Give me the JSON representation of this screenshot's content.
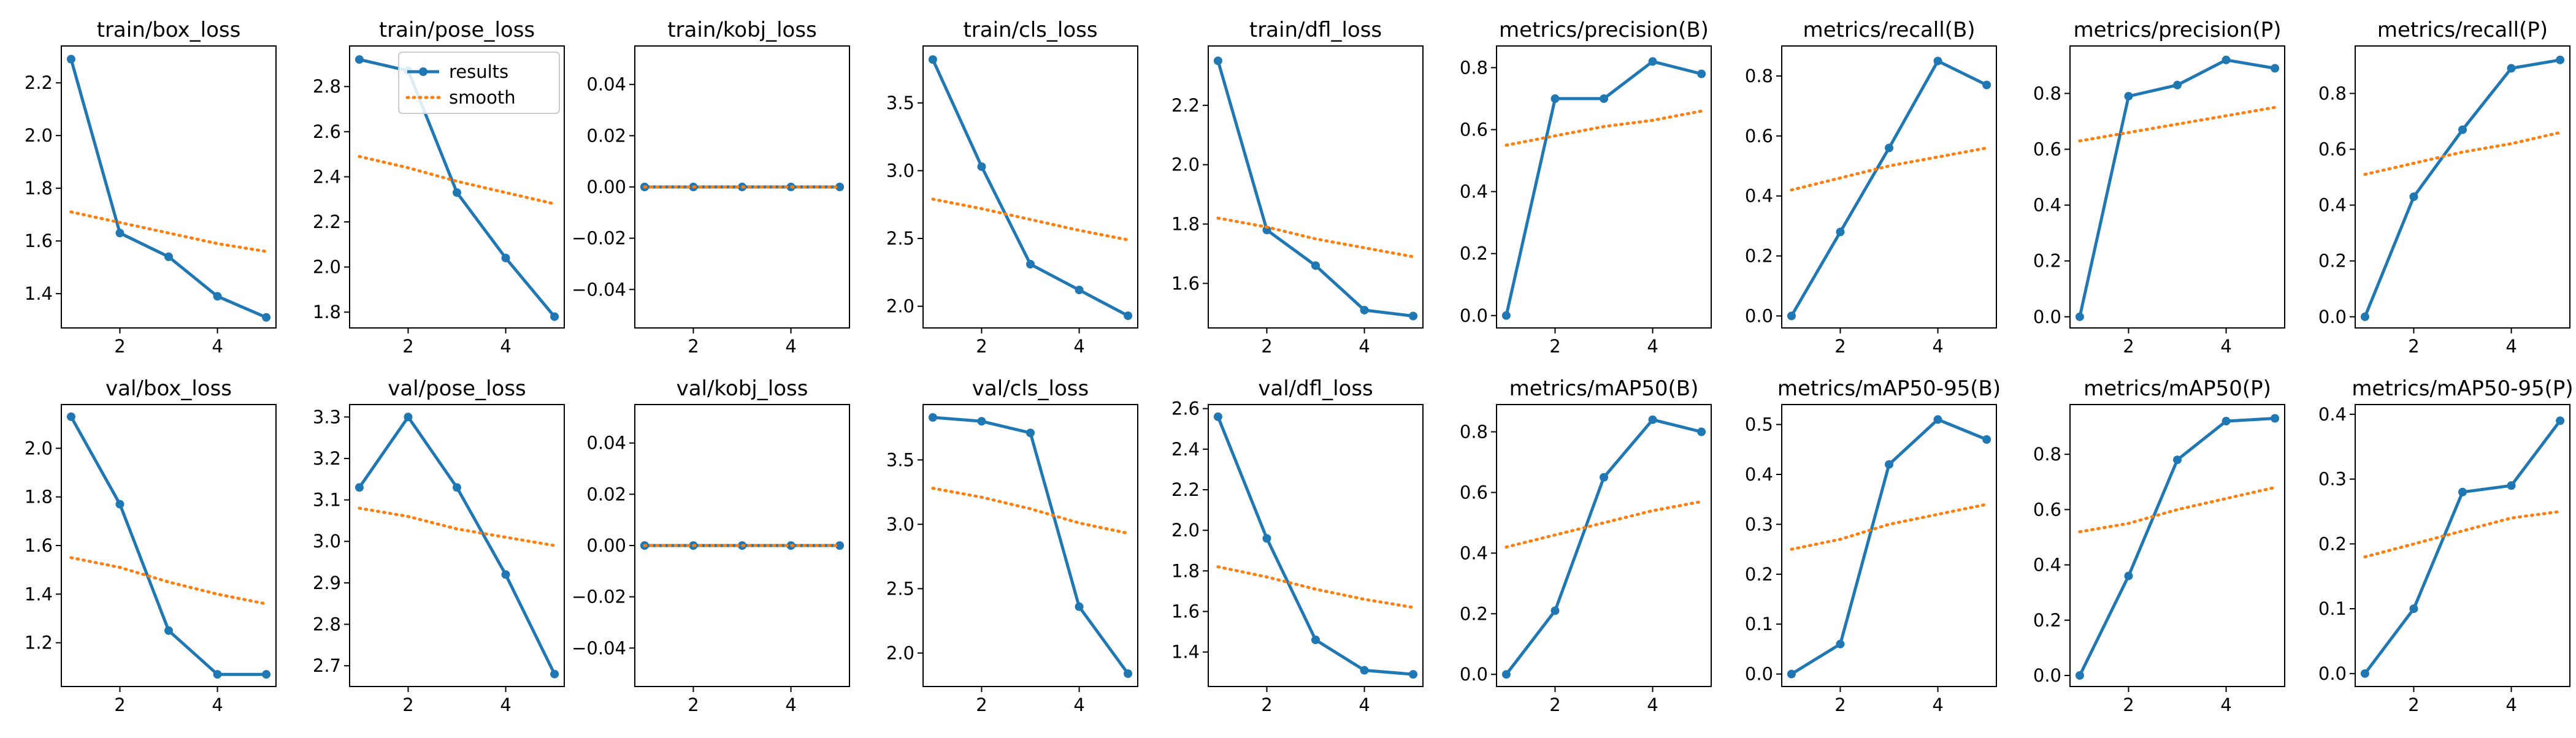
{
  "legend": {
    "results": "results",
    "smooth": "smooth"
  },
  "colors": {
    "results": "#1f77b4",
    "smooth": "#ff7f0e",
    "axes": "#000000",
    "background": "#ffffff"
  },
  "chart_data": [
    {
      "type": "line",
      "title": "train/box_loss",
      "xlabel": "",
      "ylabel": "",
      "x": [
        1,
        2,
        3,
        4,
        5
      ],
      "xlim": [
        0.8,
        5.2
      ],
      "ylim": [
        1.27,
        2.34
      ],
      "xticks": [
        2,
        4
      ],
      "yticks": [
        1.4,
        1.6,
        1.8,
        2.0,
        2.2
      ],
      "yticklabels": [
        "1.4",
        "1.6",
        "1.8",
        "2.0",
        "2.2"
      ],
      "grid": false,
      "series": [
        {
          "name": "results",
          "style": "solid-marker",
          "values": [
            2.29,
            1.63,
            1.54,
            1.39,
            1.31
          ]
        },
        {
          "name": "smooth",
          "style": "dotted",
          "values": [
            1.71,
            1.67,
            1.63,
            1.59,
            1.56
          ]
        }
      ]
    },
    {
      "type": "line",
      "title": "train/pose_loss",
      "xlabel": "",
      "ylabel": "",
      "x": [
        1,
        2,
        3,
        4,
        5
      ],
      "xlim": [
        0.8,
        5.2
      ],
      "ylim": [
        1.73,
        2.98
      ],
      "xticks": [
        2,
        4
      ],
      "yticks": [
        1.8,
        2.0,
        2.2,
        2.4,
        2.6,
        2.8
      ],
      "yticklabels": [
        "1.8",
        "2.0",
        "2.2",
        "2.4",
        "2.6",
        "2.8"
      ],
      "grid": false,
      "legend_position": "upper right",
      "series": [
        {
          "name": "results",
          "style": "solid-marker",
          "values": [
            2.92,
            2.87,
            2.33,
            2.04,
            1.78
          ]
        },
        {
          "name": "smooth",
          "style": "dotted",
          "values": [
            2.49,
            2.44,
            2.38,
            2.33,
            2.28
          ]
        }
      ]
    },
    {
      "type": "line",
      "title": "train/kobj_loss",
      "xlabel": "",
      "ylabel": "",
      "x": [
        1,
        2,
        3,
        4,
        5
      ],
      "xlim": [
        0.8,
        5.2
      ],
      "ylim": [
        -0.055,
        0.055
      ],
      "xticks": [
        2,
        4
      ],
      "yticks": [
        -0.04,
        -0.02,
        0.0,
        0.02,
        0.04
      ],
      "yticklabels": [
        "−0.04",
        "−0.02",
        "0.00",
        "0.02",
        "0.04"
      ],
      "grid": false,
      "series": [
        {
          "name": "results",
          "style": "solid-marker",
          "values": [
            0,
            0,
            0,
            0,
            0
          ]
        },
        {
          "name": "smooth",
          "style": "dotted",
          "values": [
            0,
            0,
            0,
            0,
            0
          ]
        }
      ]
    },
    {
      "type": "line",
      "title": "train/cls_loss",
      "xlabel": "",
      "ylabel": "",
      "x": [
        1,
        2,
        3,
        4,
        5
      ],
      "xlim": [
        0.8,
        5.2
      ],
      "ylim": [
        1.84,
        3.92
      ],
      "xticks": [
        2,
        4
      ],
      "yticks": [
        2.0,
        2.5,
        3.0,
        3.5
      ],
      "yticklabels": [
        "2.0",
        "2.5",
        "3.0",
        "3.5"
      ],
      "grid": false,
      "series": [
        {
          "name": "results",
          "style": "solid-marker",
          "values": [
            3.82,
            3.03,
            2.31,
            2.12,
            1.93
          ]
        },
        {
          "name": "smooth",
          "style": "dotted",
          "values": [
            2.79,
            2.72,
            2.64,
            2.56,
            2.49
          ]
        }
      ]
    },
    {
      "type": "line",
      "title": "train/dfl_loss",
      "xlabel": "",
      "ylabel": "",
      "x": [
        1,
        2,
        3,
        4,
        5
      ],
      "xlim": [
        0.8,
        5.2
      ],
      "ylim": [
        1.45,
        2.4
      ],
      "xticks": [
        2,
        4
      ],
      "yticks": [
        1.6,
        1.8,
        2.0,
        2.2
      ],
      "yticklabels": [
        "1.6",
        "1.8",
        "2.0",
        "2.2"
      ],
      "grid": false,
      "series": [
        {
          "name": "results",
          "style": "solid-marker",
          "values": [
            2.35,
            1.78,
            1.66,
            1.51,
            1.49
          ]
        },
        {
          "name": "smooth",
          "style": "dotted",
          "values": [
            1.82,
            1.79,
            1.75,
            1.72,
            1.69
          ]
        }
      ]
    },
    {
      "type": "line",
      "title": "metrics/precision(B)",
      "xlabel": "",
      "ylabel": "",
      "x": [
        1,
        2,
        3,
        4,
        5
      ],
      "xlim": [
        0.8,
        5.2
      ],
      "ylim": [
        -0.04,
        0.87
      ],
      "xticks": [
        2,
        4
      ],
      "yticks": [
        0.0,
        0.2,
        0.4,
        0.6,
        0.8
      ],
      "yticklabels": [
        "0.0",
        "0.2",
        "0.4",
        "0.6",
        "0.8"
      ],
      "grid": false,
      "series": [
        {
          "name": "results",
          "style": "solid-marker",
          "values": [
            0.0,
            0.7,
            0.7,
            0.82,
            0.78
          ]
        },
        {
          "name": "smooth",
          "style": "dotted",
          "values": [
            0.55,
            0.58,
            0.61,
            0.63,
            0.66
          ]
        }
      ]
    },
    {
      "type": "line",
      "title": "metrics/recall(B)",
      "xlabel": "",
      "ylabel": "",
      "x": [
        1,
        2,
        3,
        4,
        5
      ],
      "xlim": [
        0.8,
        5.2
      ],
      "ylim": [
        -0.04,
        0.9
      ],
      "xticks": [
        2,
        4
      ],
      "yticks": [
        0.0,
        0.2,
        0.4,
        0.6,
        0.8
      ],
      "yticklabels": [
        "0.0",
        "0.2",
        "0.4",
        "0.6",
        "0.8"
      ],
      "grid": false,
      "series": [
        {
          "name": "results",
          "style": "solid-marker",
          "values": [
            0.0,
            0.28,
            0.56,
            0.85,
            0.77
          ]
        },
        {
          "name": "smooth",
          "style": "dotted",
          "values": [
            0.42,
            0.46,
            0.5,
            0.53,
            0.56
          ]
        }
      ]
    },
    {
      "type": "line",
      "title": "metrics/precision(P)",
      "xlabel": "",
      "ylabel": "",
      "x": [
        1,
        2,
        3,
        4,
        5
      ],
      "xlim": [
        0.8,
        5.2
      ],
      "ylim": [
        -0.04,
        0.97
      ],
      "xticks": [
        2,
        4
      ],
      "yticks": [
        0.0,
        0.2,
        0.4,
        0.6,
        0.8
      ],
      "yticklabels": [
        "0.0",
        "0.2",
        "0.4",
        "0.6",
        "0.8"
      ],
      "grid": false,
      "series": [
        {
          "name": "results",
          "style": "solid-marker",
          "values": [
            0.0,
            0.79,
            0.83,
            0.92,
            0.89
          ]
        },
        {
          "name": "smooth",
          "style": "dotted",
          "values": [
            0.63,
            0.66,
            0.69,
            0.72,
            0.75
          ]
        }
      ]
    },
    {
      "type": "line",
      "title": "metrics/recall(P)",
      "xlabel": "",
      "ylabel": "",
      "x": [
        1,
        2,
        3,
        4,
        5
      ],
      "xlim": [
        0.8,
        5.2
      ],
      "ylim": [
        -0.04,
        0.97
      ],
      "xticks": [
        2,
        4
      ],
      "yticks": [
        0.0,
        0.2,
        0.4,
        0.6,
        0.8
      ],
      "yticklabels": [
        "0.0",
        "0.2",
        "0.4",
        "0.6",
        "0.8"
      ],
      "grid": false,
      "series": [
        {
          "name": "results",
          "style": "solid-marker",
          "values": [
            0.0,
            0.43,
            0.67,
            0.89,
            0.92
          ]
        },
        {
          "name": "smooth",
          "style": "dotted",
          "values": [
            0.51,
            0.55,
            0.59,
            0.62,
            0.66
          ]
        }
      ]
    },
    {
      "type": "line",
      "title": "val/box_loss",
      "xlabel": "",
      "ylabel": "",
      "x": [
        1,
        2,
        3,
        4,
        5
      ],
      "xlim": [
        0.8,
        5.2
      ],
      "ylim": [
        1.02,
        2.18
      ],
      "xticks": [
        2,
        4
      ],
      "yticks": [
        1.2,
        1.4,
        1.6,
        1.8,
        2.0
      ],
      "yticklabels": [
        "1.2",
        "1.4",
        "1.6",
        "1.8",
        "2.0"
      ],
      "grid": false,
      "series": [
        {
          "name": "results",
          "style": "solid-marker",
          "values": [
            2.13,
            1.77,
            1.25,
            1.07,
            1.07
          ]
        },
        {
          "name": "smooth",
          "style": "dotted",
          "values": [
            1.55,
            1.51,
            1.45,
            1.4,
            1.36
          ]
        }
      ]
    },
    {
      "type": "line",
      "title": "val/pose_loss",
      "xlabel": "",
      "ylabel": "",
      "x": [
        1,
        2,
        3,
        4,
        5
      ],
      "xlim": [
        0.8,
        5.2
      ],
      "ylim": [
        2.65,
        3.33
      ],
      "xticks": [
        2,
        4
      ],
      "yticks": [
        2.7,
        2.8,
        2.9,
        3.0,
        3.1,
        3.2,
        3.3
      ],
      "yticklabels": [
        "2.7",
        "2.8",
        "2.9",
        "3.0",
        "3.1",
        "3.2",
        "3.3"
      ],
      "grid": false,
      "series": [
        {
          "name": "results",
          "style": "solid-marker",
          "values": [
            3.13,
            3.3,
            3.13,
            2.92,
            2.68
          ]
        },
        {
          "name": "smooth",
          "style": "dotted",
          "values": [
            3.08,
            3.06,
            3.03,
            3.01,
            2.99
          ]
        }
      ]
    },
    {
      "type": "line",
      "title": "val/kobj_loss",
      "xlabel": "",
      "ylabel": "",
      "x": [
        1,
        2,
        3,
        4,
        5
      ],
      "xlim": [
        0.8,
        5.2
      ],
      "ylim": [
        -0.055,
        0.055
      ],
      "xticks": [
        2,
        4
      ],
      "yticks": [
        -0.04,
        -0.02,
        0.0,
        0.02,
        0.04
      ],
      "yticklabels": [
        "−0.04",
        "−0.02",
        "0.00",
        "0.02",
        "0.04"
      ],
      "grid": false,
      "series": [
        {
          "name": "results",
          "style": "solid-marker",
          "values": [
            0,
            0,
            0,
            0,
            0
          ]
        },
        {
          "name": "smooth",
          "style": "dotted",
          "values": [
            0,
            0,
            0,
            0,
            0
          ]
        }
      ]
    },
    {
      "type": "line",
      "title": "val/cls_loss",
      "xlabel": "",
      "ylabel": "",
      "x": [
        1,
        2,
        3,
        4,
        5
      ],
      "xlim": [
        0.8,
        5.2
      ],
      "ylim": [
        1.74,
        3.93
      ],
      "xticks": [
        2,
        4
      ],
      "yticks": [
        2.0,
        2.5,
        3.0,
        3.5
      ],
      "yticklabels": [
        "2.0",
        "2.5",
        "3.0",
        "3.5"
      ],
      "grid": false,
      "series": [
        {
          "name": "results",
          "style": "solid-marker",
          "values": [
            3.83,
            3.8,
            3.71,
            2.36,
            1.84
          ]
        },
        {
          "name": "smooth",
          "style": "dotted",
          "values": [
            3.28,
            3.21,
            3.12,
            3.01,
            2.93
          ]
        }
      ]
    },
    {
      "type": "line",
      "title": "val/dfl_loss",
      "xlabel": "",
      "ylabel": "",
      "x": [
        1,
        2,
        3,
        4,
        5
      ],
      "xlim": [
        0.8,
        5.2
      ],
      "ylim": [
        1.23,
        2.62
      ],
      "xticks": [
        2,
        4
      ],
      "yticks": [
        1.4,
        1.6,
        1.8,
        2.0,
        2.2,
        2.4,
        2.6
      ],
      "yticklabels": [
        "1.4",
        "1.6",
        "1.8",
        "2.0",
        "2.2",
        "2.4",
        "2.6"
      ],
      "grid": false,
      "series": [
        {
          "name": "results",
          "style": "solid-marker",
          "values": [
            2.56,
            1.96,
            1.46,
            1.31,
            1.29
          ]
        },
        {
          "name": "smooth",
          "style": "dotted",
          "values": [
            1.82,
            1.77,
            1.71,
            1.66,
            1.62
          ]
        }
      ]
    },
    {
      "type": "line",
      "title": "metrics/mAP50(B)",
      "xlabel": "",
      "ylabel": "",
      "x": [
        1,
        2,
        3,
        4,
        5
      ],
      "xlim": [
        0.8,
        5.2
      ],
      "ylim": [
        -0.04,
        0.89
      ],
      "xticks": [
        2,
        4
      ],
      "yticks": [
        0.0,
        0.2,
        0.4,
        0.6,
        0.8
      ],
      "yticklabels": [
        "0.0",
        "0.2",
        "0.4",
        "0.6",
        "0.8"
      ],
      "grid": false,
      "series": [
        {
          "name": "results",
          "style": "solid-marker",
          "values": [
            0.0,
            0.21,
            0.65,
            0.84,
            0.8
          ]
        },
        {
          "name": "smooth",
          "style": "dotted",
          "values": [
            0.42,
            0.46,
            0.5,
            0.54,
            0.57
          ]
        }
      ]
    },
    {
      "type": "line",
      "title": "metrics/mAP50-95(B)",
      "xlabel": "",
      "ylabel": "",
      "x": [
        1,
        2,
        3,
        4,
        5
      ],
      "xlim": [
        0.8,
        5.2
      ],
      "ylim": [
        -0.025,
        0.54
      ],
      "xticks": [
        2,
        4
      ],
      "yticks": [
        0.0,
        0.1,
        0.2,
        0.3,
        0.4,
        0.5
      ],
      "yticklabels": [
        "0.0",
        "0.1",
        "0.2",
        "0.3",
        "0.4",
        "0.5"
      ],
      "grid": false,
      "series": [
        {
          "name": "results",
          "style": "solid-marker",
          "values": [
            0.0,
            0.06,
            0.42,
            0.51,
            0.47
          ]
        },
        {
          "name": "smooth",
          "style": "dotted",
          "values": [
            0.25,
            0.27,
            0.3,
            0.32,
            0.34
          ]
        }
      ]
    },
    {
      "type": "line",
      "title": "metrics/mAP50(P)",
      "xlabel": "",
      "ylabel": "",
      "x": [
        1,
        2,
        3,
        4,
        5
      ],
      "xlim": [
        0.8,
        5.2
      ],
      "ylim": [
        -0.04,
        0.98
      ],
      "xticks": [
        2,
        4
      ],
      "yticks": [
        0.0,
        0.2,
        0.4,
        0.6,
        0.8
      ],
      "yticklabels": [
        "0.0",
        "0.2",
        "0.4",
        "0.6",
        "0.8"
      ],
      "grid": false,
      "series": [
        {
          "name": "results",
          "style": "solid-marker",
          "values": [
            0.0,
            0.36,
            0.78,
            0.92,
            0.93
          ]
        },
        {
          "name": "smooth",
          "style": "dotted",
          "values": [
            0.52,
            0.55,
            0.6,
            0.64,
            0.68
          ]
        }
      ]
    },
    {
      "type": "line",
      "title": "metrics/mAP50-95(P)",
      "xlabel": "",
      "ylabel": "",
      "x": [
        1,
        2,
        3,
        4,
        5
      ],
      "xlim": [
        0.8,
        5.2
      ],
      "ylim": [
        -0.02,
        0.415
      ],
      "xticks": [
        2,
        4
      ],
      "yticks": [
        0.0,
        0.1,
        0.2,
        0.3,
        0.4
      ],
      "yticklabels": [
        "0.0",
        "0.1",
        "0.2",
        "0.3",
        "0.4"
      ],
      "grid": false,
      "series": [
        {
          "name": "results",
          "style": "solid-marker",
          "values": [
            0.0,
            0.1,
            0.28,
            0.29,
            0.39
          ]
        },
        {
          "name": "smooth",
          "style": "dotted",
          "values": [
            0.18,
            0.2,
            0.22,
            0.24,
            0.25
          ]
        }
      ]
    }
  ]
}
